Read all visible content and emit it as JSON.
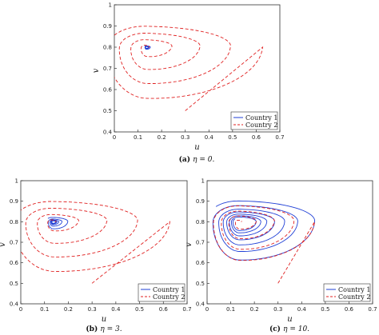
{
  "chart_data": [
    {
      "type": "line",
      "caption_tag": "(a)",
      "caption_text": "η = 0.",
      "xlabel": "u",
      "ylabel": "v",
      "xlim": [
        0,
        0.7
      ],
      "ylim": [
        0.4,
        1.0
      ],
      "xticks": [
        "0",
        "0.1",
        "0.2",
        "0.3",
        "0.4",
        "0.5",
        "0.6",
        "0.7"
      ],
      "yticks": [
        "0.4",
        "0.5",
        "0.6",
        "0.7",
        "0.8",
        "0.9",
        "1"
      ],
      "legend_position": "bottom-right",
      "grid": false,
      "equilibrium": [
        0.135,
        0.8
      ],
      "series": [
        {
          "name": "Country 1",
          "color": "#1f3fd6",
          "style": "solid",
          "turns": 3,
          "start_radius": 0.012,
          "decay": 0.6
        },
        {
          "name": "Country 2",
          "color": "#e02020",
          "style": "dashed",
          "start": [
            0.3,
            0.5
          ],
          "turns": 4,
          "radius_u": 0.42,
          "radius_v": 0.22
        }
      ]
    },
    {
      "type": "line",
      "caption_tag": "(b)",
      "caption_text": "η = 3.",
      "xlabel": "u",
      "ylabel": "v",
      "xlim": [
        0,
        0.7
      ],
      "ylim": [
        0.4,
        1.0
      ],
      "xticks": [
        "0",
        "0.1",
        "0.2",
        "0.3",
        "0.4",
        "0.5",
        "0.6",
        "0.7"
      ],
      "yticks": [
        "0.4",
        "0.5",
        "0.6",
        "0.7",
        "0.8",
        "0.9",
        "1"
      ],
      "legend_position": "bottom-right",
      "grid": false,
      "equilibrium": [
        0.135,
        0.8
      ],
      "series": [
        {
          "name": "Country 1",
          "color": "#1f3fd6",
          "style": "solid",
          "turns": 5,
          "start_radius": 0.06,
          "decay": 0.7
        },
        {
          "name": "Country 2",
          "color": "#e02020",
          "style": "dashed",
          "start": [
            0.3,
            0.5
          ],
          "turns": 4,
          "radius_u": 0.42,
          "radius_v": 0.22
        }
      ]
    },
    {
      "type": "line",
      "caption_tag": "(c)",
      "caption_text": "η = 10.",
      "xlabel": "u",
      "ylabel": "v",
      "xlim": [
        0,
        0.7
      ],
      "ylim": [
        0.4,
        1.0
      ],
      "xticks": [
        "0",
        "0.1",
        "0.2",
        "0.3",
        "0.4",
        "0.5",
        "0.6",
        "0.7"
      ],
      "yticks": [
        "0.4",
        "0.5",
        "0.6",
        "0.7",
        "0.8",
        "0.9",
        "1"
      ],
      "legend_position": "bottom-right",
      "grid": false,
      "equilibrium": [
        0.135,
        0.8
      ],
      "series": [
        {
          "name": "Country 1",
          "color": "#1f3fd6",
          "style": "solid",
          "turns": 7,
          "start_radius": 0.3,
          "decay": 0.85
        },
        {
          "name": "Country 2",
          "color": "#e02020",
          "style": "dashed",
          "start": [
            0.3,
            0.5
          ],
          "turns": 4,
          "radius_u": 0.27,
          "radius_v": 0.17
        }
      ]
    }
  ]
}
